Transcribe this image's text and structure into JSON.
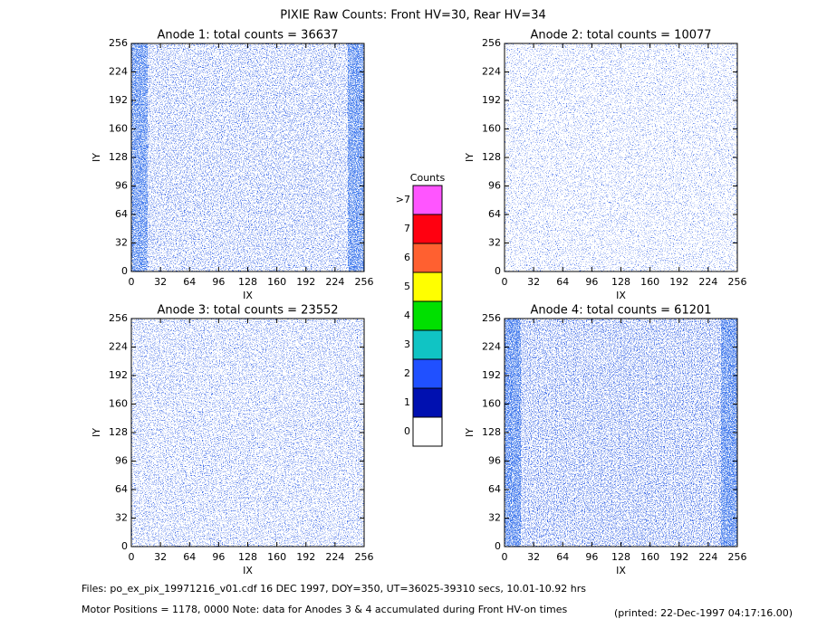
{
  "title": "PIXIE Raw Counts:  Front HV=30, Rear HV=34",
  "chart_data": [
    {
      "type": "heatmap",
      "title": "Anode 1: total counts = 36637",
      "xlabel": "IX",
      "ylabel": "IY",
      "xlim": [
        0,
        256
      ],
      "ylim": [
        0,
        256
      ],
      "xticks": [
        0,
        32,
        64,
        96,
        128,
        160,
        192,
        224,
        256
      ],
      "yticks": [
        0,
        32,
        64,
        96,
        128,
        160,
        192,
        224,
        256
      ]
    },
    {
      "type": "heatmap",
      "title": "Anode 2: total counts = 10077",
      "xlabel": "IX",
      "ylabel": "IY",
      "xlim": [
        0,
        256
      ],
      "ylim": [
        0,
        256
      ],
      "xticks": [
        0,
        32,
        64,
        96,
        128,
        160,
        192,
        224,
        256
      ],
      "yticks": [
        0,
        32,
        64,
        96,
        128,
        160,
        192,
        224,
        256
      ]
    },
    {
      "type": "heatmap",
      "title": "Anode 3: total counts = 23552",
      "xlabel": "IX",
      "ylabel": "IY",
      "xlim": [
        0,
        256
      ],
      "ylim": [
        0,
        256
      ],
      "xticks": [
        0,
        32,
        64,
        96,
        128,
        160,
        192,
        224,
        256
      ],
      "yticks": [
        0,
        32,
        64,
        96,
        128,
        160,
        192,
        224,
        256
      ]
    },
    {
      "type": "heatmap",
      "title": "Anode 4: total counts = 61201",
      "xlabel": "IX",
      "ylabel": "IY",
      "xlim": [
        0,
        256
      ],
      "ylim": [
        0,
        256
      ],
      "xticks": [
        0,
        32,
        64,
        96,
        128,
        160,
        192,
        224,
        256
      ],
      "yticks": [
        0,
        32,
        64,
        96,
        128,
        160,
        192,
        224,
        256
      ]
    }
  ],
  "colorbar": {
    "title": "Counts",
    "labels": [
      "0",
      "1",
      "2",
      "3",
      "4",
      "5",
      "6",
      "7",
      ">7"
    ],
    "colors": [
      "#ffffff",
      "#0010b0",
      "#2050ff",
      "#10c4c4",
      "#00e000",
      "#ffff00",
      "#ff6030",
      "#ff0010",
      "#ff55ff"
    ]
  },
  "footer": {
    "files": "Files: po_ex_pix_19971216_v01.cdf    16 DEC 1997, DOY=350, UT=36025-39310 secs, 10.01-10.92 hrs",
    "note": "Motor Positions = 1178, 0000   Note: data for Anodes 3 & 4 accumulated during Front HV-on times",
    "printed": "(printed: 22-Dec-1997 04:17:16.00)"
  }
}
